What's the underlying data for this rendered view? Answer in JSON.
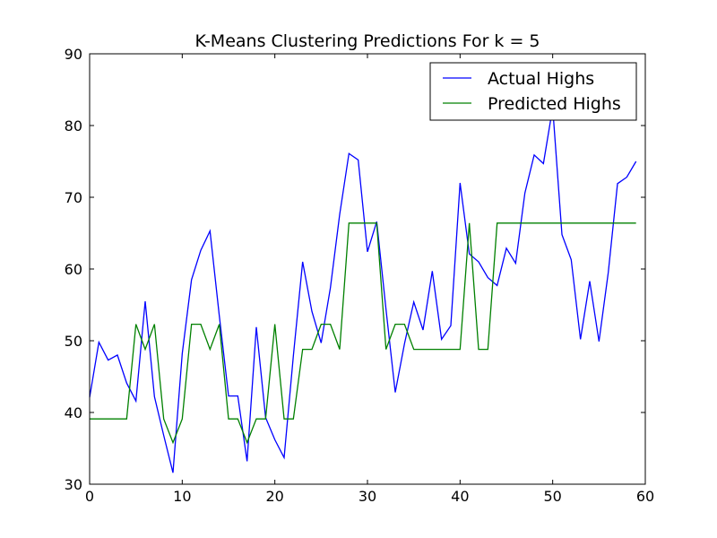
{
  "chart_data": {
    "type": "line",
    "title": "K-Means Clustering Predictions For k = 5",
    "xlabel": "",
    "ylabel": "",
    "xlim": [
      0,
      60
    ],
    "ylim": [
      30,
      90
    ],
    "x_ticks": [
      0,
      10,
      20,
      30,
      40,
      50,
      60
    ],
    "y_ticks": [
      30,
      40,
      50,
      60,
      70,
      80,
      90
    ],
    "grid": false,
    "legend_position": "top-right",
    "series": [
      {
        "name": "Actual Highs",
        "color": "#0000ff",
        "values": [
          42.1,
          49.8,
          47.3,
          48.0,
          44.1,
          41.6,
          55.5,
          42.2,
          36.8,
          31.6,
          48.2,
          58.5,
          62.6,
          65.3,
          53.5,
          42.3,
          42.3,
          33.2,
          51.9,
          39.3,
          36.2,
          33.7,
          47.9,
          61.0,
          54.1,
          49.7,
          57.4,
          67.6,
          76.1,
          75.2,
          62.4,
          66.6,
          54.4,
          42.8,
          49.6,
          55.4,
          51.5,
          59.7,
          50.2,
          52.1,
          72.0,
          62.1,
          61.0,
          58.8,
          57.7,
          62.9,
          60.8,
          70.6,
          75.9,
          74.7,
          82.5,
          64.8,
          61.3,
          50.2,
          58.3,
          49.9,
          59.5,
          71.9,
          72.8,
          75.0
        ]
      },
      {
        "name": "Predicted Highs",
        "color": "#008000",
        "values": [
          39.1,
          39.1,
          39.1,
          39.1,
          39.1,
          52.3,
          48.8,
          52.3,
          39.1,
          35.8,
          39.1,
          52.3,
          52.3,
          48.8,
          52.3,
          39.1,
          39.1,
          35.8,
          39.1,
          39.1,
          52.3,
          39.1,
          39.1,
          48.8,
          48.8,
          52.3,
          52.3,
          48.8,
          66.4,
          66.4,
          66.4,
          66.4,
          48.8,
          52.3,
          52.3,
          48.8,
          48.8,
          48.8,
          48.8,
          48.8,
          48.8,
          66.4,
          48.8,
          48.8,
          66.4,
          66.4,
          66.4,
          66.4,
          66.4,
          66.4,
          66.4,
          66.4,
          66.4,
          66.4,
          66.4,
          66.4,
          66.4,
          66.4,
          66.4,
          66.4
        ]
      }
    ]
  }
}
